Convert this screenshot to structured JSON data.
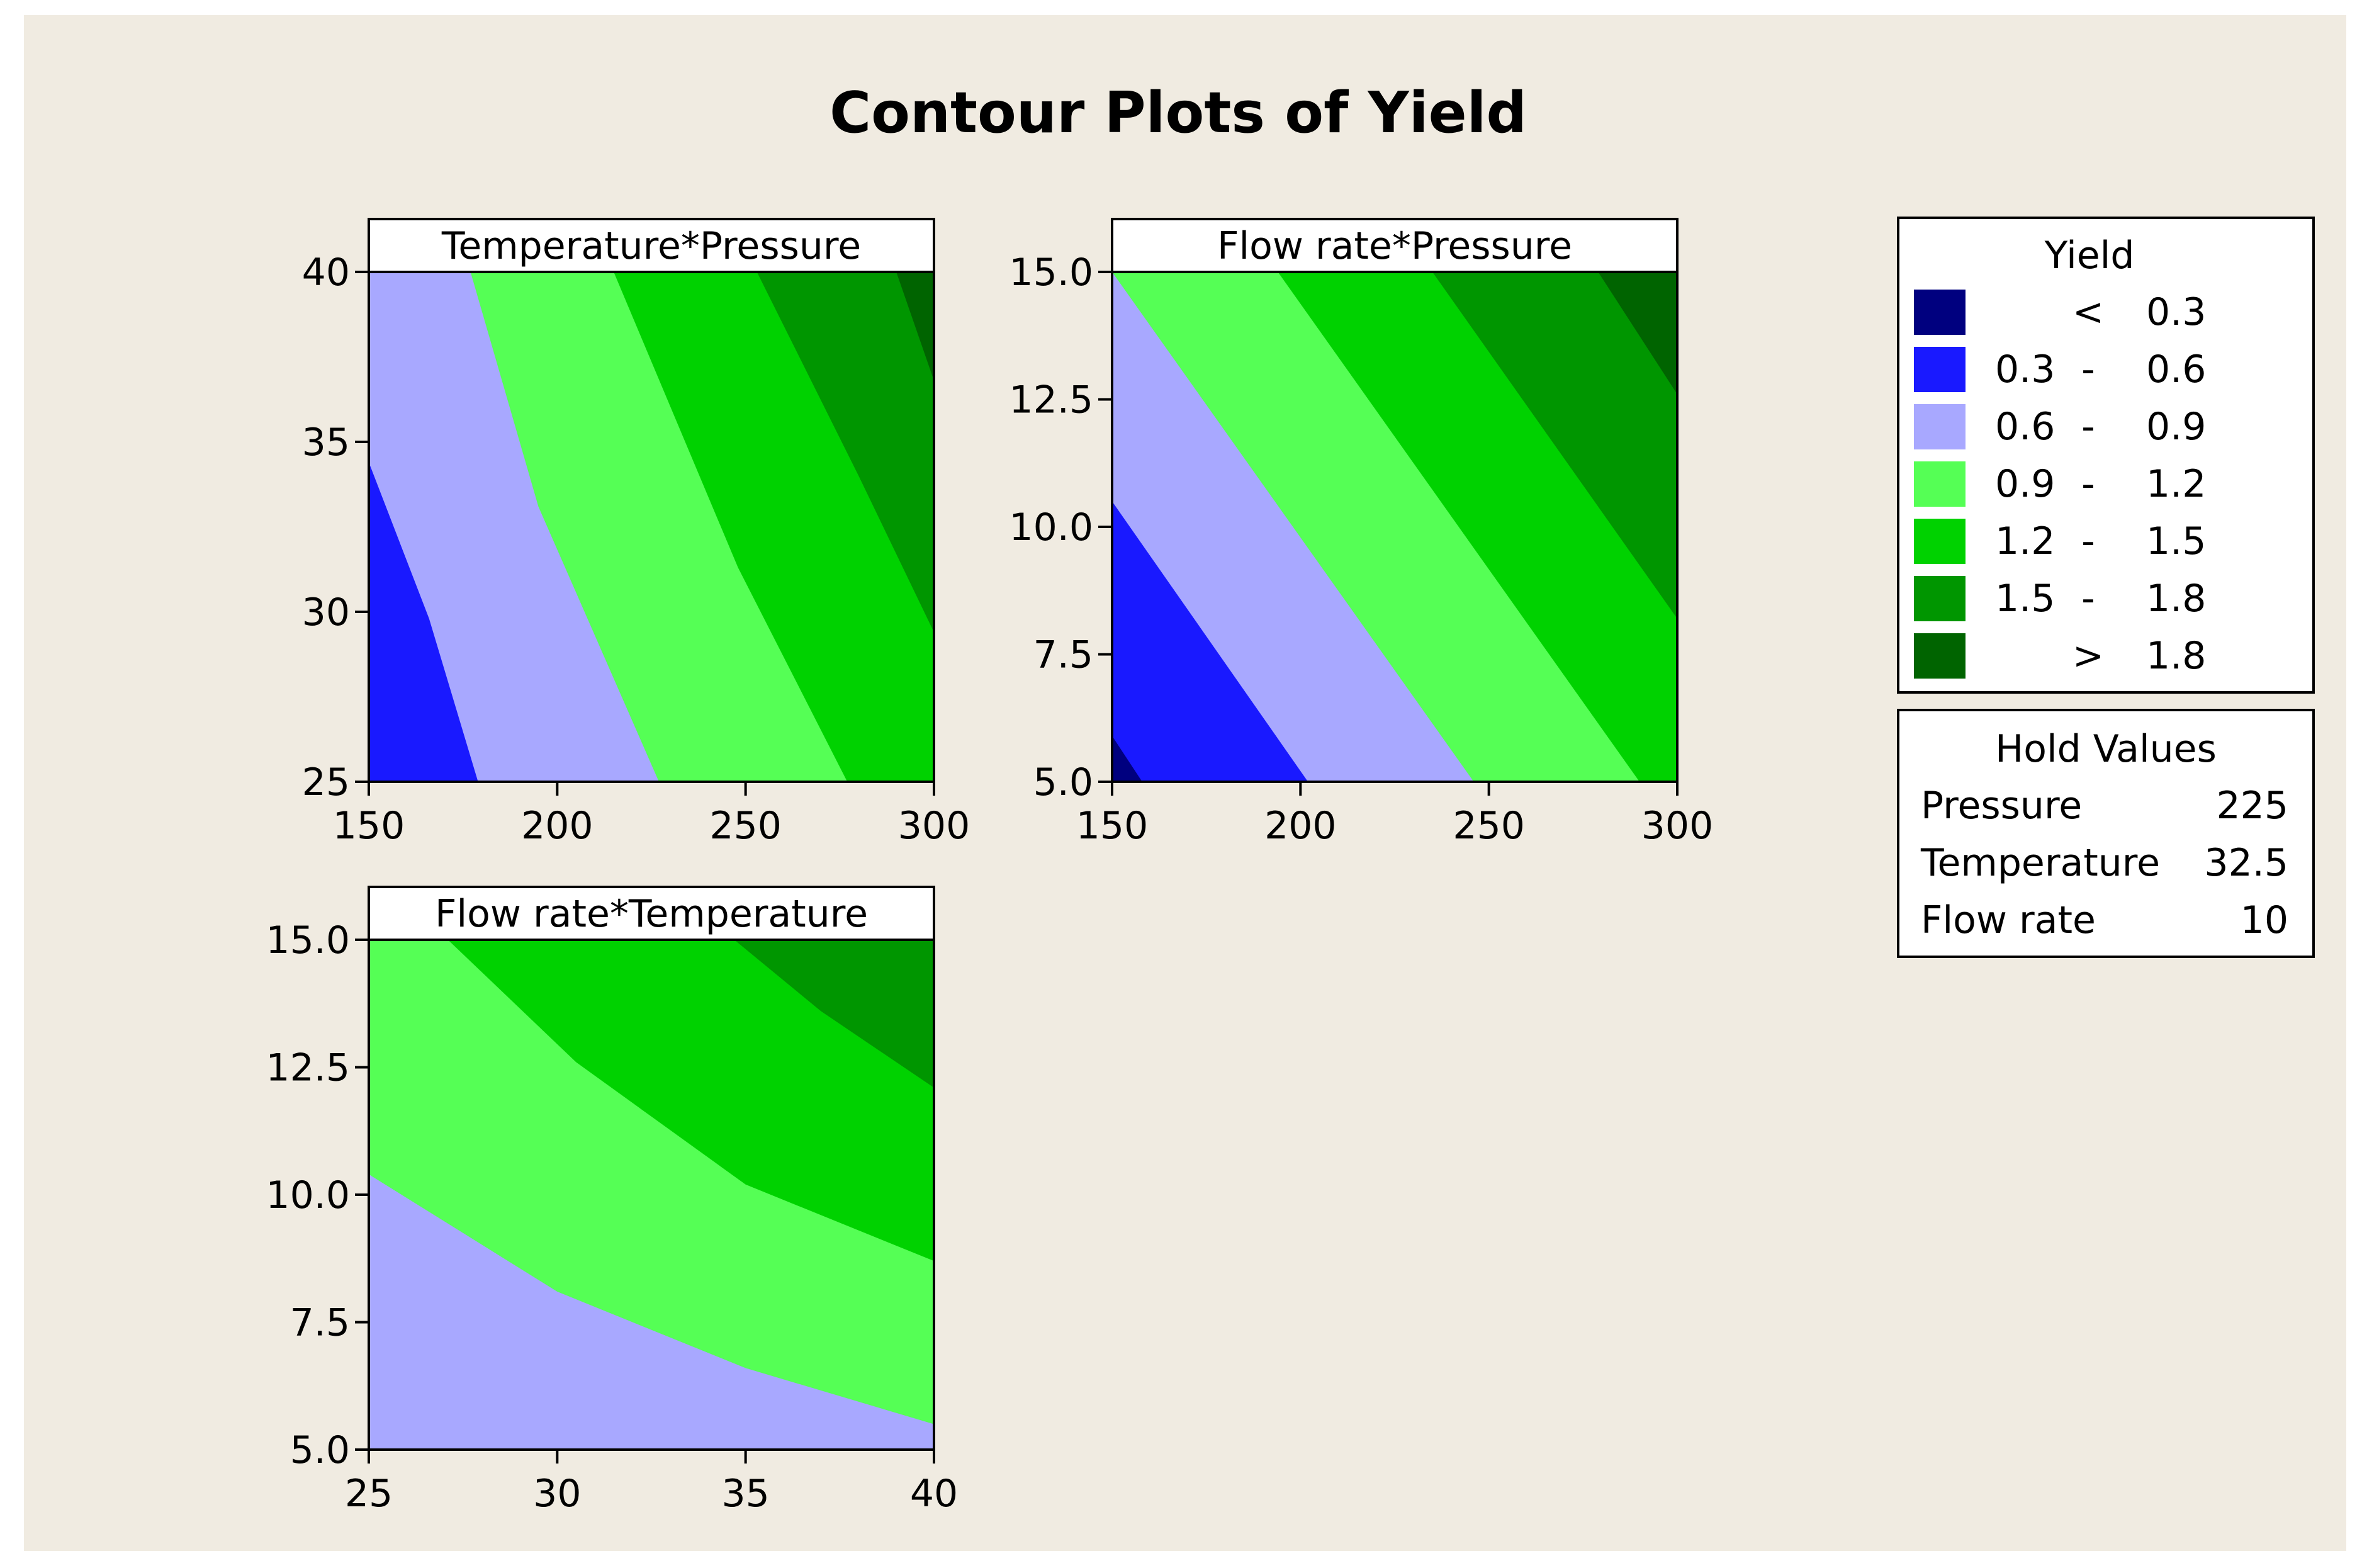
{
  "chart_data": {
    "type": "contour",
    "title": "Contour Plots of Yield",
    "colors": {
      "background": "#F0EBE1",
      "levels": [
        "#00007F",
        "#1919FF",
        "#A8A8FF",
        "#55FF55",
        "#00D200",
        "#009600",
        "#006400"
      ]
    },
    "levels": [
      {
        "lo": "",
        "sep": "<",
        "hi": "0.3"
      },
      {
        "lo": "0.3",
        "sep": "-",
        "hi": "0.6"
      },
      {
        "lo": "0.6",
        "sep": "-",
        "hi": "0.9"
      },
      {
        "lo": "0.9",
        "sep": "-",
        "hi": "1.2"
      },
      {
        "lo": "1.2",
        "sep": "-",
        "hi": "1.5"
      },
      {
        "lo": "1.5",
        "sep": "-",
        "hi": "1.8"
      },
      {
        "lo": "",
        "sep": ">",
        "hi": "1.8"
      }
    ],
    "thresholds": [
      0.3,
      0.6,
      0.9,
      1.2,
      1.5,
      1.8
    ],
    "legend": {
      "title": "Yield",
      "position": "right"
    },
    "hold_values": {
      "title": "Hold Values",
      "rows": [
        {
          "name": "Pressure",
          "value": "225"
        },
        {
          "name": "Temperature",
          "value": "32.5"
        },
        {
          "name": "Flow rate",
          "value": "10"
        }
      ]
    },
    "panels": [
      {
        "title": "Temperature*Pressure",
        "x": {
          "range": [
            150,
            300
          ],
          "ticks": [
            "150",
            "200",
            "250",
            "300"
          ]
        },
        "y": {
          "range": [
            25,
            40
          ],
          "ticks": [
            "25",
            "30",
            "35",
            "40"
          ]
        },
        "contour_edges": [
          {
            "level": 0.6,
            "points": [
              [
                150,
                34.4
              ],
              [
                166,
                29.8
              ],
              [
                179,
                25
              ]
            ]
          },
          {
            "level": 0.9,
            "points": [
              [
                177,
                40
              ],
              [
                195,
                33.1
              ],
              [
                227,
                25
              ]
            ]
          },
          {
            "level": 1.2,
            "points": [
              [
                215,
                40
              ],
              [
                248,
                31.3
              ],
              [
                277,
                25
              ]
            ]
          },
          {
            "level": 1.5,
            "points": [
              [
                253,
                40
              ],
              [
                280,
                34
              ],
              [
                300,
                29.4
              ]
            ]
          },
          {
            "level": 1.8,
            "points": [
              [
                290,
                40
              ],
              [
                300,
                36.8
              ]
            ]
          }
        ]
      },
      {
        "title": "Flow rate*Pressure",
        "x": {
          "range": [
            150,
            300
          ],
          "ticks": [
            "150",
            "200",
            "250",
            "300"
          ]
        },
        "y": {
          "range": [
            5,
            15
          ],
          "ticks": [
            "5.0",
            "7.5",
            "10.0",
            "12.5",
            "15.0"
          ]
        },
        "contour_edges": [
          {
            "level": 0.3,
            "points": [
              [
                150,
                5.9
              ],
              [
                158,
                5
              ]
            ]
          },
          {
            "level": 0.6,
            "points": [
              [
                150,
                10.5
              ],
              [
                202,
                5
              ]
            ]
          },
          {
            "level": 0.9,
            "points": [
              [
                150,
                15
              ],
              [
                246,
                5
              ]
            ]
          },
          {
            "level": 1.2,
            "points": [
              [
                194,
                15
              ],
              [
                290,
                5
              ]
            ]
          },
          {
            "level": 1.5,
            "points": [
              [
                235,
                15
              ],
              [
                300,
                8.2
              ]
            ]
          },
          {
            "level": 1.8,
            "points": [
              [
                279,
                15
              ],
              [
                300,
                12.6
              ]
            ]
          }
        ]
      },
      {
        "title": "Flow rate*Temperature",
        "x": {
          "range": [
            25,
            40
          ],
          "ticks": [
            "25",
            "30",
            "35",
            "40"
          ]
        },
        "y": {
          "range": [
            5,
            15
          ],
          "ticks": [
            "5.0",
            "7.5",
            "10.0",
            "12.5",
            "15.0"
          ]
        },
        "contour_edges": [
          {
            "level": 0.9,
            "points": [
              [
                25,
                10.4
              ],
              [
                30,
                8.1
              ],
              [
                35,
                6.6
              ],
              [
                40,
                5.5
              ]
            ]
          },
          {
            "level": 1.2,
            "points": [
              [
                27.1,
                15
              ],
              [
                30.5,
                12.6
              ],
              [
                35,
                10.2
              ],
              [
                40,
                8.7
              ]
            ]
          },
          {
            "level": 1.5,
            "points": [
              [
                34.7,
                15
              ],
              [
                37,
                13.6
              ],
              [
                40,
                12.1
              ]
            ]
          }
        ]
      }
    ]
  }
}
